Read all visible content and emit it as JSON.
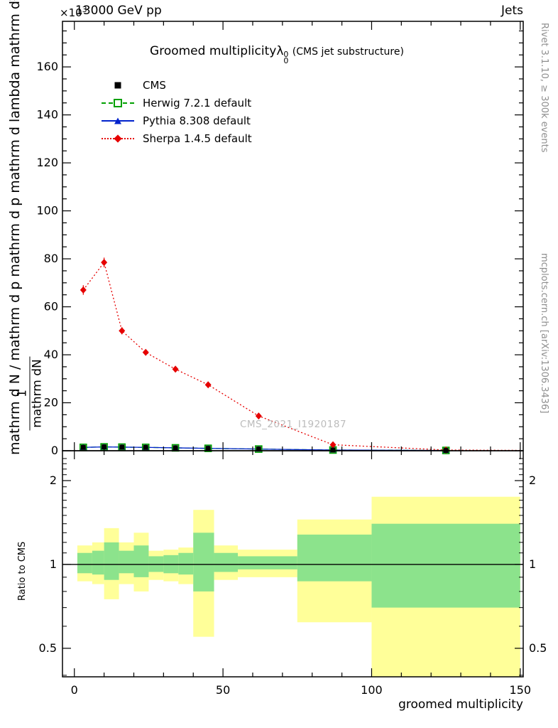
{
  "header": {
    "beam": "13000 GeV pp",
    "category": "Jets",
    "y_multiplier": "×10",
    "y_multiplier_exp": "3"
  },
  "plot": {
    "title_main": "Groomed multiplicity",
    "title_lambda": "λ",
    "title_sub": "0",
    "title_sup": "0",
    "title_suffix": "(CMS jet substructure)",
    "watermark": "CMS_2021_I1920187",
    "ylabel_outer": "mathrm d N / mathrm d p mathrm d p mathrm d lambda  mathrm d²N",
    "ylabel_frac_num": "1",
    "ylabel_frac_den": "mathrm dN"
  },
  "legend": {
    "items": [
      {
        "label": "CMS"
      },
      {
        "label": "Herwig 7.2.1 default"
      },
      {
        "label": "Pythia 8.308 default"
      },
      {
        "label": "Sherpa 1.4.5 default"
      }
    ]
  },
  "sidebar_right": {
    "top": "Rivet 3.1.10, ≥ 300k events",
    "bottom": "mcplots.cern.ch [arXiv:1306.3436]"
  },
  "ratio_panel": {
    "ylabel": "Ratio to CMS"
  },
  "xaxis": {
    "label": "groomed multiplicity",
    "ticks": [
      0,
      50,
      100,
      150
    ]
  },
  "yaxis": {
    "ticks": [
      0,
      20,
      40,
      60,
      80,
      100,
      120,
      140,
      160
    ]
  },
  "colors": {
    "band_yellow": "#ffff99",
    "band_green": "#8ce38c",
    "cms": "#000000",
    "herwig": "#00a000",
    "pythia": "#0022cc",
    "sherpa": "#e60000"
  },
  "chart_data": [
    {
      "type": "line",
      "title": "Groomed multiplicity lambda_0^0 (CMS jet substructure)",
      "xlabel": "groomed multiplicity",
      "ylabel": "1/mathrm dN mathrm d2N / mathrm dp mathrm dlambda (x10^3)",
      "xlim": [
        -4,
        151
      ],
      "ylim": [
        0,
        179
      ],
      "grid": false,
      "legend_position": "top-left",
      "series": [
        {
          "name": "CMS",
          "color": "#000000",
          "line": "none",
          "marker": "filled-square",
          "x": [
            3,
            10,
            16,
            24,
            34,
            45,
            62,
            87,
            125
          ],
          "y": [
            1.4,
            1.6,
            1.5,
            1.4,
            1.2,
            1.0,
            0.7,
            0.3,
            0.12
          ]
        },
        {
          "name": "Herwig 7.2.1 default",
          "color": "#00a000",
          "line": "dashed",
          "marker": "open-square",
          "x": [
            3,
            10,
            16,
            24,
            34,
            45,
            62,
            87,
            125
          ],
          "y": [
            1.4,
            1.6,
            1.5,
            1.4,
            1.2,
            1.0,
            0.7,
            0.3,
            0.12
          ]
        },
        {
          "name": "Pythia 8.308 default",
          "color": "#0022cc",
          "line": "solid",
          "marker": "filled-triangle",
          "x": [
            3,
            10,
            16,
            24,
            34,
            45,
            62,
            87,
            125
          ],
          "y": [
            1.4,
            1.6,
            1.5,
            1.4,
            1.2,
            1.0,
            0.7,
            0.3,
            0.12
          ]
        },
        {
          "name": "Sherpa 1.4.5 default",
          "color": "#e60000",
          "line": "dotted",
          "marker": "filled-diamond",
          "x": [
            3,
            10,
            16,
            24,
            34,
            45,
            62,
            87,
            125
          ],
          "y": [
            67,
            78.5,
            50,
            41,
            34,
            27.5,
            14.5,
            2.5,
            0.3
          ],
          "yerr": [
            2,
            2,
            1.5,
            1.2,
            1,
            1,
            0.8,
            0.4,
            0.2
          ],
          "line_x": [
            3,
            10,
            16,
            24,
            34,
            45,
            62,
            87,
            125,
            150
          ],
          "line_y": [
            67,
            78.5,
            50,
            41,
            34,
            27.5,
            14.5,
            2.5,
            0.3,
            0.15
          ]
        }
      ]
    },
    {
      "type": "ratio-bands",
      "ylabel": "Ratio to CMS",
      "yscale": "log",
      "ylim": [
        0.395,
        2.56
      ],
      "yticks": [
        0.5,
        1,
        2
      ],
      "reference_line": 1,
      "bands": [
        {
          "x": [
            1,
            6
          ],
          "yellow": [
            0.87,
            1.17
          ],
          "green": [
            0.93,
            1.1
          ]
        },
        {
          "x": [
            6,
            10
          ],
          "yellow": [
            0.85,
            1.2
          ],
          "green": [
            0.92,
            1.12
          ]
        },
        {
          "x": [
            10,
            15
          ],
          "yellow": [
            0.75,
            1.35
          ],
          "green": [
            0.88,
            1.2
          ]
        },
        {
          "x": [
            15,
            20
          ],
          "yellow": [
            0.85,
            1.2
          ],
          "green": [
            0.93,
            1.12
          ]
        },
        {
          "x": [
            20,
            25
          ],
          "yellow": [
            0.8,
            1.3
          ],
          "green": [
            0.9,
            1.17
          ]
        },
        {
          "x": [
            25,
            30
          ],
          "yellow": [
            0.88,
            1.12
          ],
          "green": [
            0.94,
            1.07
          ]
        },
        {
          "x": [
            30,
            35
          ],
          "yellow": [
            0.87,
            1.13
          ],
          "green": [
            0.93,
            1.08
          ]
        },
        {
          "x": [
            35,
            40
          ],
          "yellow": [
            0.85,
            1.15
          ],
          "green": [
            0.92,
            1.1
          ]
        },
        {
          "x": [
            40,
            47
          ],
          "yellow": [
            0.55,
            1.57
          ],
          "green": [
            0.8,
            1.3
          ]
        },
        {
          "x": [
            47,
            55
          ],
          "yellow": [
            0.88,
            1.17
          ],
          "green": [
            0.94,
            1.1
          ]
        },
        {
          "x": [
            55,
            75
          ],
          "yellow": [
            0.9,
            1.13
          ],
          "green": [
            0.96,
            1.07
          ]
        },
        {
          "x": [
            75,
            100
          ],
          "yellow": [
            0.62,
            1.45
          ],
          "green": [
            0.87,
            1.28
          ]
        },
        {
          "x": [
            100,
            150
          ],
          "yellow": [
            0.37,
            1.75
          ],
          "green": [
            0.7,
            1.4
          ]
        }
      ]
    }
  ]
}
